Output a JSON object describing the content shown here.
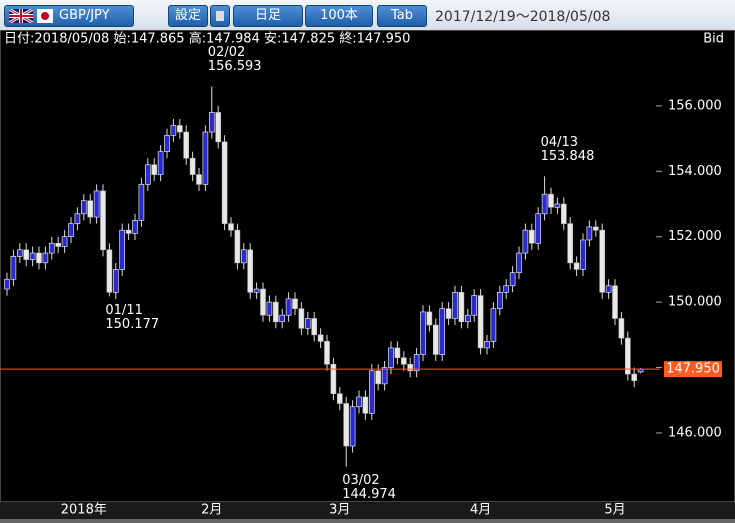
{
  "toolbar": {
    "pair": "GBP/JPY",
    "buttons": [
      "設定",
      "日足",
      "100本",
      "Tab"
    ],
    "range": "2017/12/19～2018/05/08"
  },
  "info": "日付:2018/05/08 始:147.865 高:147.984 安:147.825 終:147.950",
  "quote_side": "Bid",
  "chart_data": {
    "type": "candlestick",
    "categories": [
      null,
      null,
      null,
      null,
      null,
      null,
      null,
      null,
      null,
      null,
      null,
      null,
      "2018年",
      null,
      null,
      null,
      null,
      null,
      null,
      null,
      null,
      null,
      null,
      null,
      null,
      null,
      null,
      null,
      null,
      null,
      null,
      null,
      "2月",
      null,
      null,
      null,
      null,
      null,
      null,
      null,
      null,
      null,
      null,
      null,
      null,
      null,
      null,
      null,
      null,
      null,
      null,
      null,
      "3月",
      null,
      null,
      null,
      null,
      null,
      null,
      null,
      null,
      null,
      null,
      null,
      null,
      null,
      null,
      null,
      null,
      null,
      null,
      null,
      null,
      null,
      "4月",
      null,
      null,
      null,
      null,
      null,
      null,
      null,
      null,
      null,
      null,
      null,
      null,
      null,
      null,
      null,
      null,
      null,
      null,
      null,
      null,
      "5月",
      null,
      null,
      null,
      null
    ],
    "open": [
      150.4,
      150.7,
      151.4,
      151.6,
      151.3,
      151.5,
      151.2,
      151.5,
      151.8,
      151.7,
      152.0,
      152.4,
      152.7,
      153.1,
      152.6,
      153.4,
      151.6,
      150.3,
      151.0,
      152.2,
      152.1,
      152.5,
      153.6,
      154.2,
      153.9,
      154.6,
      155.1,
      155.4,
      155.2,
      154.4,
      153.9,
      153.6,
      155.2,
      155.8,
      154.9,
      152.4,
      152.2,
      151.2,
      151.6,
      150.3,
      150.4,
      149.6,
      150.0,
      149.4,
      149.6,
      150.1,
      149.8,
      149.2,
      149.5,
      149.0,
      148.8,
      148.1,
      147.2,
      146.9,
      145.6,
      146.8,
      147.1,
      146.6,
      147.9,
      147.5,
      148.0,
      148.6,
      148.3,
      148.1,
      147.9,
      148.4,
      149.7,
      149.3,
      148.4,
      149.8,
      149.5,
      150.3,
      149.4,
      149.6,
      150.2,
      148.6,
      148.8,
      149.8,
      150.3,
      150.5,
      150.9,
      151.5,
      152.2,
      151.8,
      152.7,
      153.3,
      152.9,
      153.0,
      152.4,
      151.2,
      151.0,
      151.9,
      152.3,
      152.2,
      150.3,
      150.5,
      149.5,
      148.9,
      147.8,
      147.865
    ],
    "high": [
      150.9,
      151.6,
      151.8,
      151.8,
      151.7,
      151.7,
      151.7,
      152.0,
      152.0,
      152.2,
      152.6,
      152.9,
      153.3,
      153.3,
      153.6,
      153.6,
      151.8,
      151.2,
      152.4,
      152.4,
      152.7,
      153.8,
      154.4,
      154.4,
      154.8,
      155.3,
      155.6,
      155.6,
      155.4,
      154.6,
      154.1,
      155.4,
      156.593,
      156.0,
      155.1,
      152.6,
      152.4,
      151.8,
      151.8,
      150.6,
      150.6,
      150.2,
      150.2,
      149.8,
      150.3,
      150.3,
      150.0,
      149.7,
      149.7,
      149.2,
      149.0,
      148.3,
      147.4,
      147.1,
      147.0,
      147.3,
      147.3,
      148.1,
      148.1,
      148.2,
      148.8,
      148.8,
      148.5,
      148.3,
      148.6,
      149.9,
      149.9,
      149.5,
      150.0,
      150.0,
      150.5,
      150.5,
      149.8,
      150.4,
      150.4,
      149.0,
      150.0,
      150.5,
      150.7,
      151.1,
      151.7,
      152.4,
      152.4,
      152.9,
      153.848,
      153.5,
      153.2,
      153.2,
      152.6,
      151.4,
      152.1,
      152.5,
      152.5,
      152.4,
      150.7,
      150.7,
      149.7,
      149.1,
      148.0,
      147.984
    ],
    "low": [
      150.2,
      150.5,
      151.2,
      151.1,
      151.1,
      151.0,
      151.0,
      151.3,
      151.5,
      151.5,
      151.8,
      152.2,
      152.5,
      152.4,
      152.4,
      151.4,
      150.177,
      150.1,
      150.8,
      151.9,
      151.9,
      152.3,
      153.4,
      153.7,
      153.7,
      154.4,
      154.9,
      155.0,
      154.2,
      153.7,
      153.4,
      153.4,
      155.0,
      154.7,
      152.2,
      152.0,
      151.0,
      151.0,
      150.1,
      150.1,
      149.4,
      149.4,
      149.2,
      149.2,
      149.4,
      149.6,
      149.0,
      149.0,
      148.8,
      148.6,
      147.9,
      147.0,
      146.7,
      144.974,
      145.4,
      146.6,
      146.4,
      146.4,
      147.3,
      147.3,
      147.8,
      148.1,
      147.9,
      147.7,
      147.7,
      148.2,
      149.1,
      148.2,
      148.2,
      149.3,
      149.3,
      149.2,
      149.2,
      149.4,
      148.4,
      148.4,
      148.6,
      149.6,
      150.1,
      150.3,
      150.7,
      151.3,
      151.6,
      151.6,
      152.5,
      152.7,
      152.7,
      152.2,
      151.0,
      150.8,
      150.8,
      151.7,
      152.0,
      150.1,
      150.1,
      149.3,
      148.7,
      147.6,
      147.4,
      147.825
    ],
    "close": [
      150.7,
      151.4,
      151.6,
      151.3,
      151.5,
      151.2,
      151.5,
      151.8,
      151.7,
      152.0,
      152.4,
      152.7,
      153.1,
      152.6,
      153.4,
      151.6,
      150.3,
      151.0,
      152.2,
      152.1,
      152.5,
      153.6,
      154.2,
      153.9,
      154.6,
      155.1,
      155.4,
      155.2,
      154.4,
      153.9,
      153.6,
      155.2,
      155.8,
      154.9,
      152.4,
      152.2,
      151.2,
      151.6,
      150.3,
      150.4,
      149.6,
      150.0,
      149.4,
      149.6,
      150.1,
      149.8,
      149.2,
      149.5,
      149.0,
      148.8,
      148.1,
      147.2,
      146.9,
      145.6,
      146.8,
      147.1,
      146.6,
      147.9,
      147.5,
      148.0,
      148.6,
      148.3,
      148.1,
      147.9,
      148.4,
      149.7,
      149.3,
      148.4,
      149.8,
      149.5,
      150.3,
      149.4,
      149.6,
      150.2,
      148.6,
      148.8,
      149.8,
      150.3,
      150.5,
      150.9,
      151.5,
      152.2,
      151.8,
      152.7,
      153.3,
      152.9,
      153.0,
      152.4,
      151.2,
      151.0,
      151.9,
      152.3,
      152.2,
      150.3,
      150.5,
      149.5,
      148.9,
      147.8,
      147.6,
      147.95
    ],
    "close_label_last": "147.950",
    "up_color": "#2a2ad0",
    "down_color": "#e8e8e8",
    "price_line_color": "#ff5a1f",
    "annotations": [
      {
        "label": "02/02",
        "value": 156.593
      },
      {
        "label": "01/11",
        "value": 150.177
      },
      {
        "label": "03/02",
        "value": 144.974
      },
      {
        "label": "04/13",
        "value": 153.848
      }
    ],
    "ylim": [
      143.95,
      158.32
    ],
    "yticks": [
      {
        "value": 146,
        "label": "146.000"
      },
      {
        "value": 148,
        "label": "148.000"
      },
      {
        "value": 150,
        "label": "150.000"
      },
      {
        "value": 152,
        "label": "152.000"
      },
      {
        "value": 154,
        "label": "154.000"
      },
      {
        "value": 156,
        "label": "156.000"
      }
    ],
    "grid": false
  }
}
